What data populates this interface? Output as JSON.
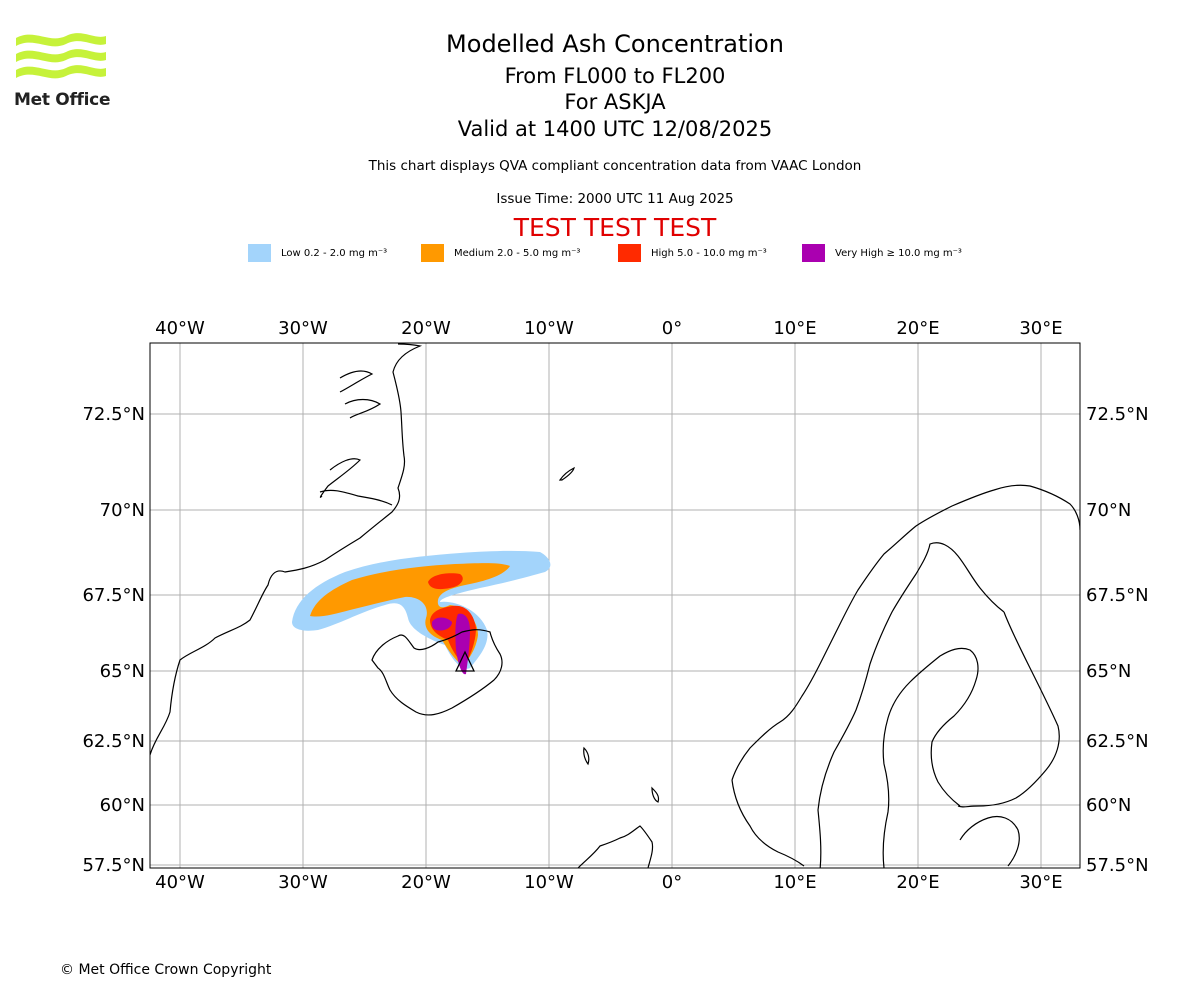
{
  "logo": {
    "text": "Met Office",
    "color": "#c6f23a"
  },
  "title": {
    "main": "Modelled Ash Concentration",
    "levels": "From FL000 to FL200",
    "volcano": "For ASKJA",
    "valid": "Valid at 1400 UTC 12/08/2025",
    "note": "This chart displays QVA compliant concentration data from VAAC London",
    "issue": "Issue Time: 2000 UTC 11 Aug 2025",
    "test": "TEST TEST TEST"
  },
  "legend": [
    {
      "label": "Low 0.2 - 2.0 mg m⁻³",
      "color": "#a3d4fb"
    },
    {
      "label": "Medium 2.0 - 5.0 mg m⁻³",
      "color": "#ff9900"
    },
    {
      "label": "High 5.0 - 10.0 mg m⁻³",
      "color": "#ff2a00"
    },
    {
      "label": "Very High ≥ 10.0 mg m⁻³",
      "color": "#aa00b0"
    }
  ],
  "map": {
    "lon_labels": [
      "40°W",
      "30°W",
      "20°W",
      "10°W",
      "0°",
      "10°E",
      "20°E",
      "30°E"
    ],
    "lat_labels": [
      "72.5°N",
      "70°N",
      "67.5°N",
      "65°N",
      "62.5°N",
      "60°N",
      "57.5°N"
    ],
    "volcano_marker": "triangle-icon"
  },
  "copyright": "© Met Office Crown Copyright"
}
